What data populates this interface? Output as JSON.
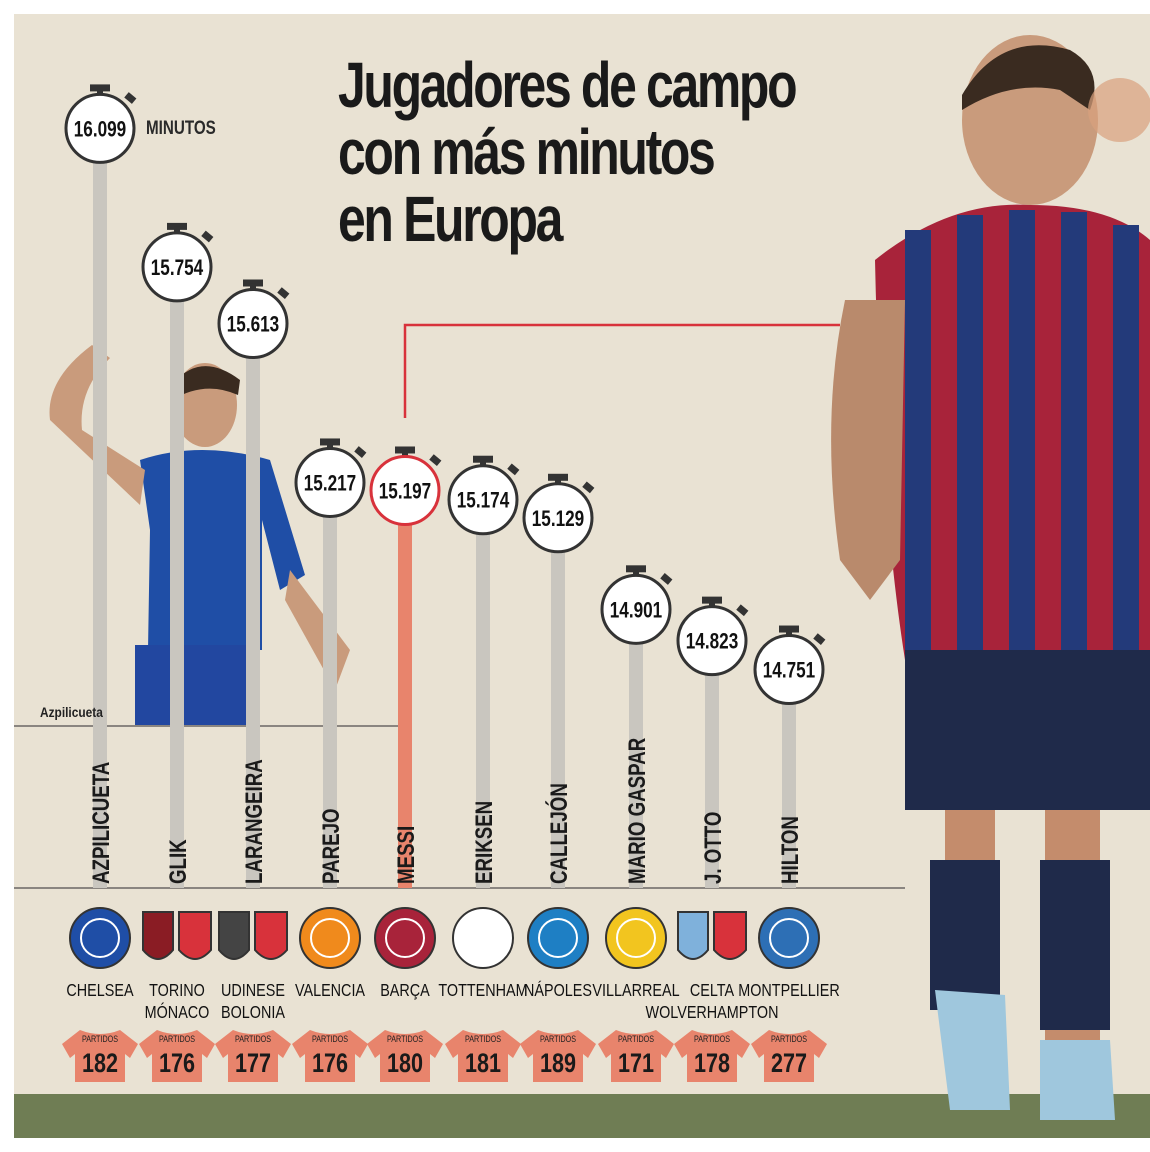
{
  "title": {
    "line1": "Jugadores de campo",
    "line2": "con más minutos",
    "line3": "en Europa"
  },
  "units_label": "MINUTOS",
  "photo_caption": "Azpilicueta",
  "shirt_label": "PARTIDOS",
  "colors": {
    "background": "#e9e2d3",
    "bar": "#c9c6bf",
    "highlight_bar": "#e8846c",
    "highlight_ring": "#d8323b",
    "shirt": "#e8846c",
    "footer": "#6f7d54",
    "leader_line": "#d8323b"
  },
  "chart_data": {
    "type": "bar",
    "orientation": "vertical-lollipop",
    "title": "Jugadores de campo con más minutos en Europa",
    "ylabel": "MINUTOS",
    "ylim": [
      14700,
      16100
    ],
    "highlight": "MESSI",
    "categories": [
      "AZPILICUETA",
      "GLIK",
      "LARANGEIRA",
      "PAREJO",
      "MESSI",
      "ERIKSEN",
      "CALLEJÓN",
      "MARIO GASPAR",
      "J. OTTO",
      "HILTON"
    ],
    "values": [
      16099,
      15754,
      15613,
      15217,
      15197,
      15174,
      15129,
      14901,
      14823,
      14751
    ],
    "value_labels": [
      "16.099",
      "15.754",
      "15.613",
      "15.217",
      "15.197",
      "15.174",
      "15.129",
      "14.901",
      "14.823",
      "14.751"
    ],
    "clubs": [
      [
        "CHELSEA"
      ],
      [
        "TORINO",
        "MÓNACO"
      ],
      [
        "UDINESE",
        "BOLONIA"
      ],
      [
        "VALENCIA"
      ],
      [
        "BARÇA"
      ],
      [
        "TOTTENHAM"
      ],
      [
        "NÁPOLES"
      ],
      [
        "VILLARREAL"
      ],
      [
        "CELTA",
        "WOLVERHAMPTON"
      ],
      [
        "MONTPELLIER"
      ]
    ],
    "partidos": [
      182,
      176,
      177,
      176,
      180,
      181,
      189,
      171,
      178,
      277
    ]
  }
}
